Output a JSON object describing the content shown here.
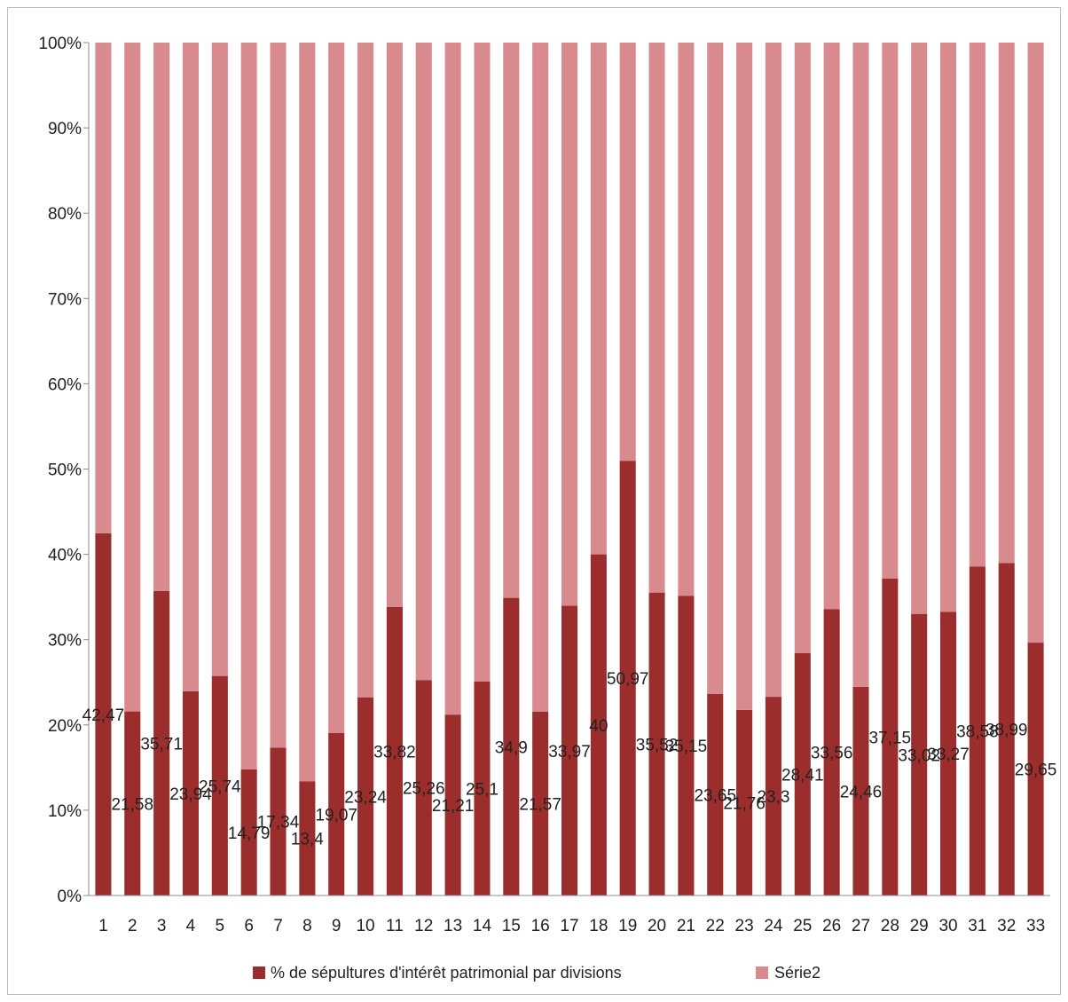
{
  "chart_data": {
    "type": "bar",
    "stacked": "percent",
    "categories": [
      "1",
      "2",
      "3",
      "4",
      "5",
      "6",
      "7",
      "8",
      "9",
      "10",
      "11",
      "12",
      "13",
      "14",
      "15",
      "16",
      "17",
      "18",
      "19",
      "20",
      "21",
      "22",
      "23",
      "24",
      "25",
      "26",
      "27",
      "28",
      "29",
      "30",
      "31",
      "32",
      "33"
    ],
    "series": [
      {
        "name": "% de sépultures d'intérêt patrimonial par divisions",
        "color": "#9b2d2d",
        "values": [
          42.47,
          21.58,
          35.71,
          23.94,
          25.74,
          14.79,
          17.34,
          13.4,
          19.07,
          23.24,
          33.82,
          25.26,
          21.21,
          25.1,
          34.9,
          21.57,
          33.97,
          40,
          50.97,
          35.52,
          35.15,
          23.65,
          21.76,
          23.3,
          28.41,
          33.56,
          24.46,
          37.15,
          33.02,
          33.27,
          38.58,
          38.99,
          29.65
        ],
        "labels": [
          "42,47",
          "21,58",
          "35,71",
          "23,94",
          "25,74",
          "14,79",
          "17,34",
          "13,4",
          "19,07",
          "23,24",
          "33,82",
          "25,26",
          "21,21",
          "25,1",
          "34,9",
          "21,57",
          "33,97",
          "40",
          "50,97",
          "35,52",
          "35,15",
          "23,65",
          "21,76",
          "23,3",
          "28,41",
          "33,56",
          "24,46",
          "37,15",
          "33,02",
          "33,27",
          "38,58",
          "38,99",
          "29,65"
        ]
      },
      {
        "name": "Série2",
        "color": "#d98a8f",
        "values": [
          57.53,
          78.42,
          64.29,
          76.06,
          74.26,
          85.21,
          82.66,
          86.6,
          80.93,
          76.76,
          66.18,
          74.74,
          78.79,
          74.9,
          65.1,
          78.43,
          66.03,
          60,
          49.03,
          64.48,
          64.85,
          76.35,
          78.24,
          76.7,
          71.59,
          66.44,
          75.54,
          62.85,
          66.98,
          66.73,
          61.42,
          61.01,
          70.35
        ]
      }
    ],
    "yticks": [
      "0%",
      "10%",
      "20%",
      "30%",
      "40%",
      "50%",
      "60%",
      "70%",
      "80%",
      "90%",
      "100%"
    ],
    "ylim": [
      0,
      100
    ],
    "grid": false,
    "legend": "bottom"
  }
}
